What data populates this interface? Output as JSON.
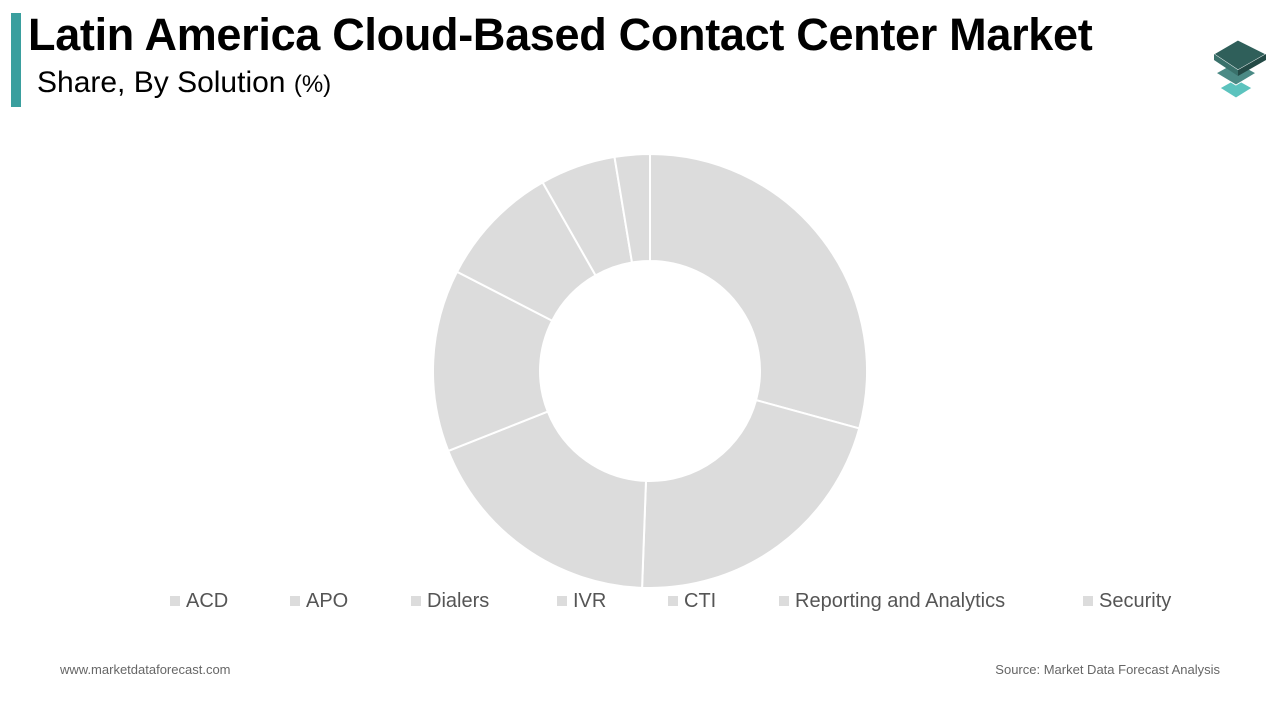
{
  "header": {
    "title": "Latin America Cloud-Based Contact Center Market",
    "subtitle": "Share, By Solution",
    "unit": "(%)"
  },
  "logo": {
    "icon": "stacked-layers-icon",
    "colors": [
      "#2f5f5a",
      "#4b8a85",
      "#5cc3be"
    ]
  },
  "colors": {
    "accent": "#3a9f9e",
    "slice": "#dcdcdc",
    "slice_border": "#ffffff"
  },
  "chart_data": {
    "type": "pie",
    "donut": true,
    "title": "",
    "legend_position": "bottom",
    "categories": [
      "ACD",
      "APO",
      "Dialers",
      "IVR",
      "CTI",
      "Reporting and Analytics",
      "Security"
    ],
    "values": [
      30.2,
      22.0,
      19.0,
      14.0,
      9.5,
      5.8,
      2.7
    ]
  },
  "footer": {
    "website": "www.marketdataforecast.com",
    "source": "Source: Market Data Forecast Analysis"
  }
}
